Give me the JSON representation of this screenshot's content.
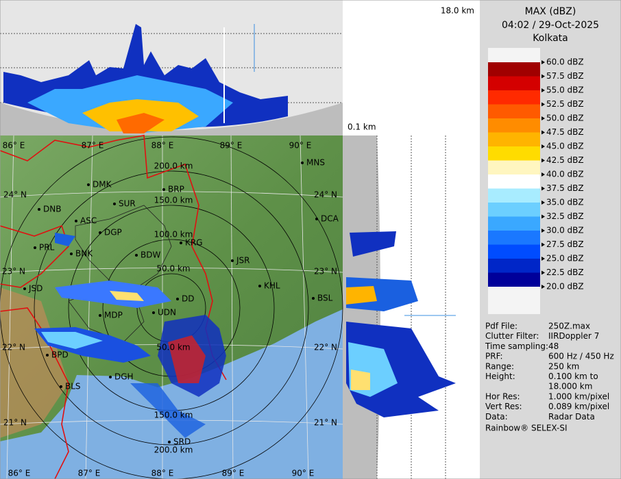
{
  "header": {
    "title": "MAX (dBZ)",
    "time": "04:02 / 29-Oct-2025",
    "site": "Kolkata"
  },
  "top_profile_label": "18.0 km",
  "side_profile_label": "0.1 km",
  "legend": [
    {
      "label": "60.0 dBZ",
      "color": "#ffffff"
    },
    {
      "label": "57.5 dBZ",
      "color": "#a00000"
    },
    {
      "label": "55.0 dBZ",
      "color": "#d40000"
    },
    {
      "label": "52.5 dBZ",
      "color": "#ff2a00"
    },
    {
      "label": "50.0 dBZ",
      "color": "#ff5a00"
    },
    {
      "label": "47.5 dBZ",
      "color": "#ff8c00"
    },
    {
      "label": "45.0 dBZ",
      "color": "#ffb400"
    },
    {
      "label": "42.5 dBZ",
      "color": "#ffdc00"
    },
    {
      "label": "40.0 dBZ",
      "color": "#fff6c0"
    },
    {
      "label": "37.5 dBZ",
      "color": "#ffffff"
    },
    {
      "label": "35.0 dBZ",
      "color": "#a8ecff"
    },
    {
      "label": "32.5 dBZ",
      "color": "#6ccfff"
    },
    {
      "label": "30.0 dBZ",
      "color": "#3aa8ff"
    },
    {
      "label": "27.5 dBZ",
      "color": "#1a78ff"
    },
    {
      "label": "25.0 dBZ",
      "color": "#004cff"
    },
    {
      "label": "22.5 dBZ",
      "color": "#0026c8"
    },
    {
      "label": "20.0 dBZ",
      "color": "#00009a"
    }
  ],
  "info": [
    {
      "label": "Pdf File:",
      "value": [
        "250Z.max"
      ]
    },
    {
      "label": "Clutter Filter:",
      "value": [
        "IIRDoppler 7"
      ]
    },
    {
      "label": "Time sampling:",
      "value": [
        "48"
      ]
    },
    {
      "label": "PRF:",
      "value": [
        "600 Hz / 450 Hz"
      ]
    },
    {
      "label": "Range:",
      "value": [
        "250 km"
      ]
    },
    {
      "label": "Height:",
      "value": [
        "0.100 km to",
        "18.000 km"
      ]
    },
    {
      "label": "Hor Res:",
      "value": [
        "1.000 km/pixel"
      ]
    },
    {
      "label": "Vert Res:",
      "value": [
        "0.089 km/pixel"
      ]
    },
    {
      "label": "Data:",
      "value": [
        "Radar Data"
      ]
    }
  ],
  "footer": "Rainbow® SELEX-SI",
  "map": {
    "lon_top": [
      "86° E",
      "87° E",
      "88° E",
      "89° E",
      "90° E"
    ],
    "lon_bottom": [
      "86° E",
      "87° E",
      "88° E",
      "89° E",
      "90° E"
    ],
    "lat_left": [
      "24° N",
      "23° N",
      "22° N",
      "21° N"
    ],
    "lat_right": [
      "24° N",
      "23° N",
      "22° N",
      "21° N"
    ],
    "cities": [
      "DMK",
      "BRP",
      "MNS",
      "DNB",
      "SUR",
      "ASC",
      "DGP",
      "DCA",
      "PRL",
      "BNK",
      "BDW",
      "KRG",
      "JSR",
      "KHL",
      "JSD",
      "BSL",
      "DD",
      "MDP",
      "UDN",
      "BPD",
      "DGH",
      "BLS",
      "SRD"
    ],
    "ranges": [
      "200.0 km",
      "150.0 km",
      "100.0 km",
      "50.0 km",
      "50.0 km",
      "150.0 km",
      "200.0 km"
    ]
  }
}
